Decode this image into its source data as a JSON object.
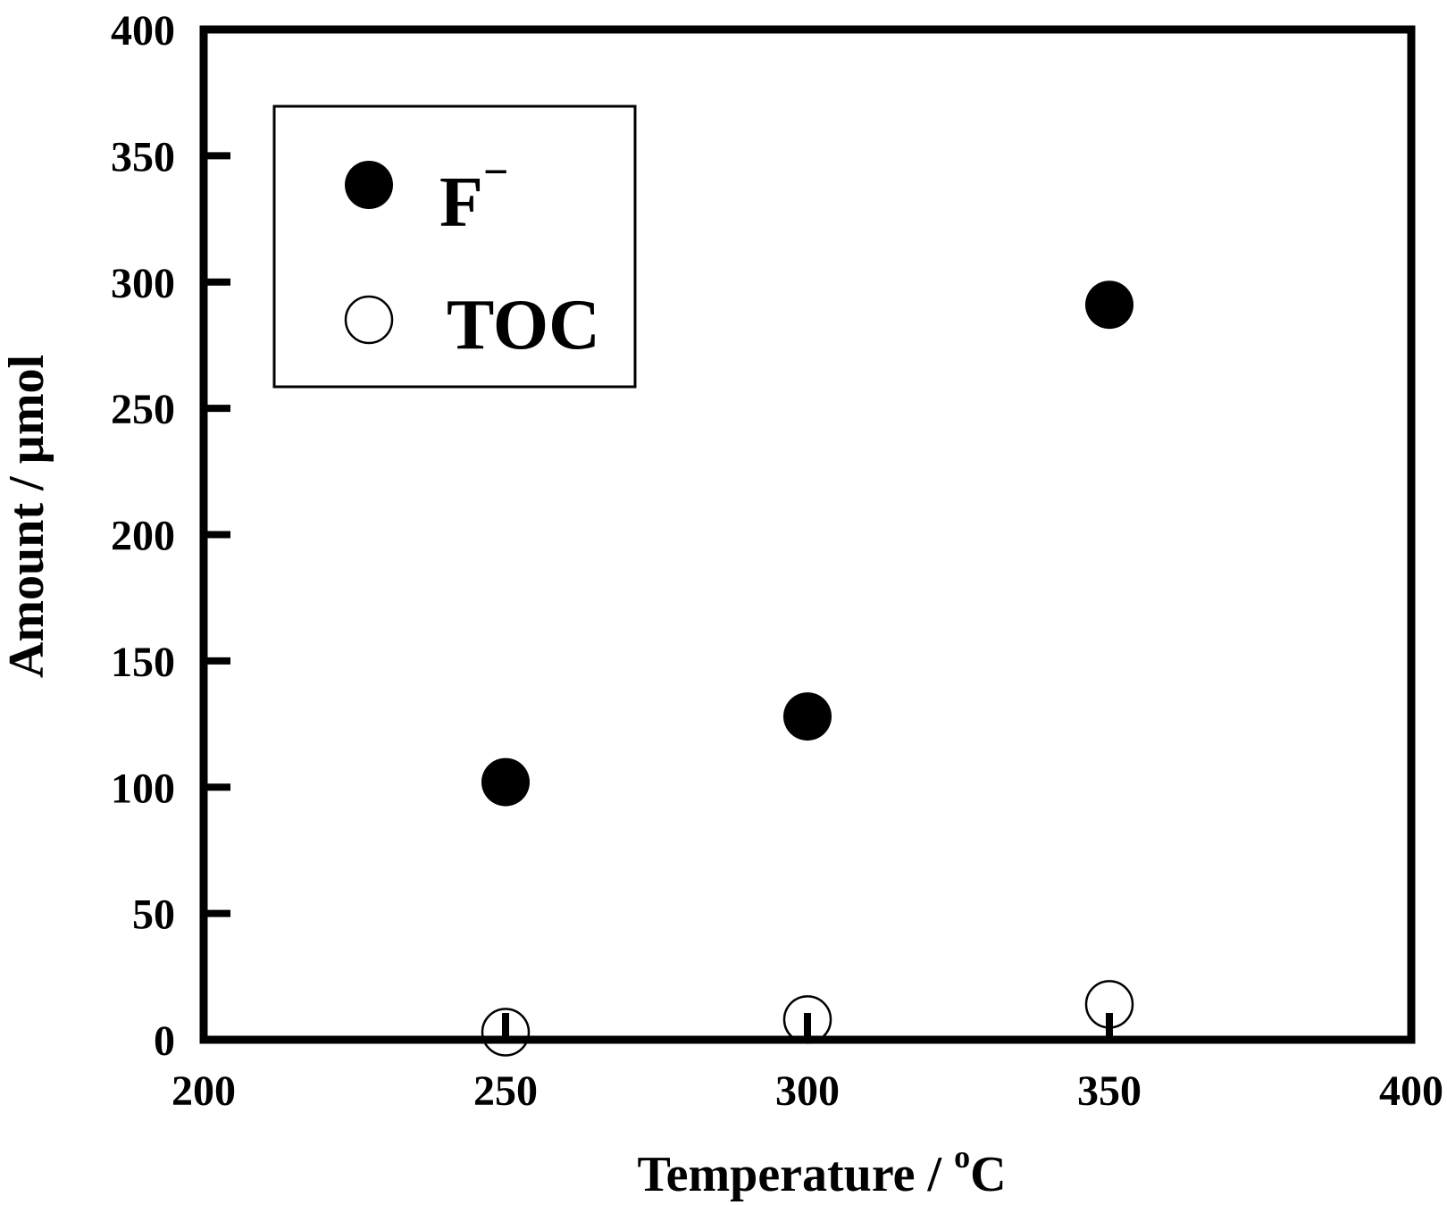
{
  "chart_data": {
    "type": "scatter",
    "title": "",
    "xlabel": "Temperature / ",
    "xlabel_sup": "o",
    "xlabel_unit": "C",
    "ylabel": "Amount / µmol",
    "xlim": [
      200,
      400
    ],
    "ylim": [
      0,
      400
    ],
    "xticks": [
      200,
      250,
      300,
      350,
      400
    ],
    "yticks": [
      0,
      50,
      100,
      150,
      200,
      250,
      300,
      350,
      400
    ],
    "grid": false,
    "legend_position": "top-left",
    "series": [
      {
        "name": "F",
        "name_sup": "−",
        "marker": "filled-circle",
        "color": "#000000",
        "x": [
          250,
          300,
          350
        ],
        "y": [
          102,
          128,
          291
        ]
      },
      {
        "name": "TOC",
        "marker": "open-circle",
        "color": "#000000",
        "x": [
          250,
          300,
          350
        ],
        "y": [
          3,
          8,
          14
        ]
      }
    ]
  }
}
